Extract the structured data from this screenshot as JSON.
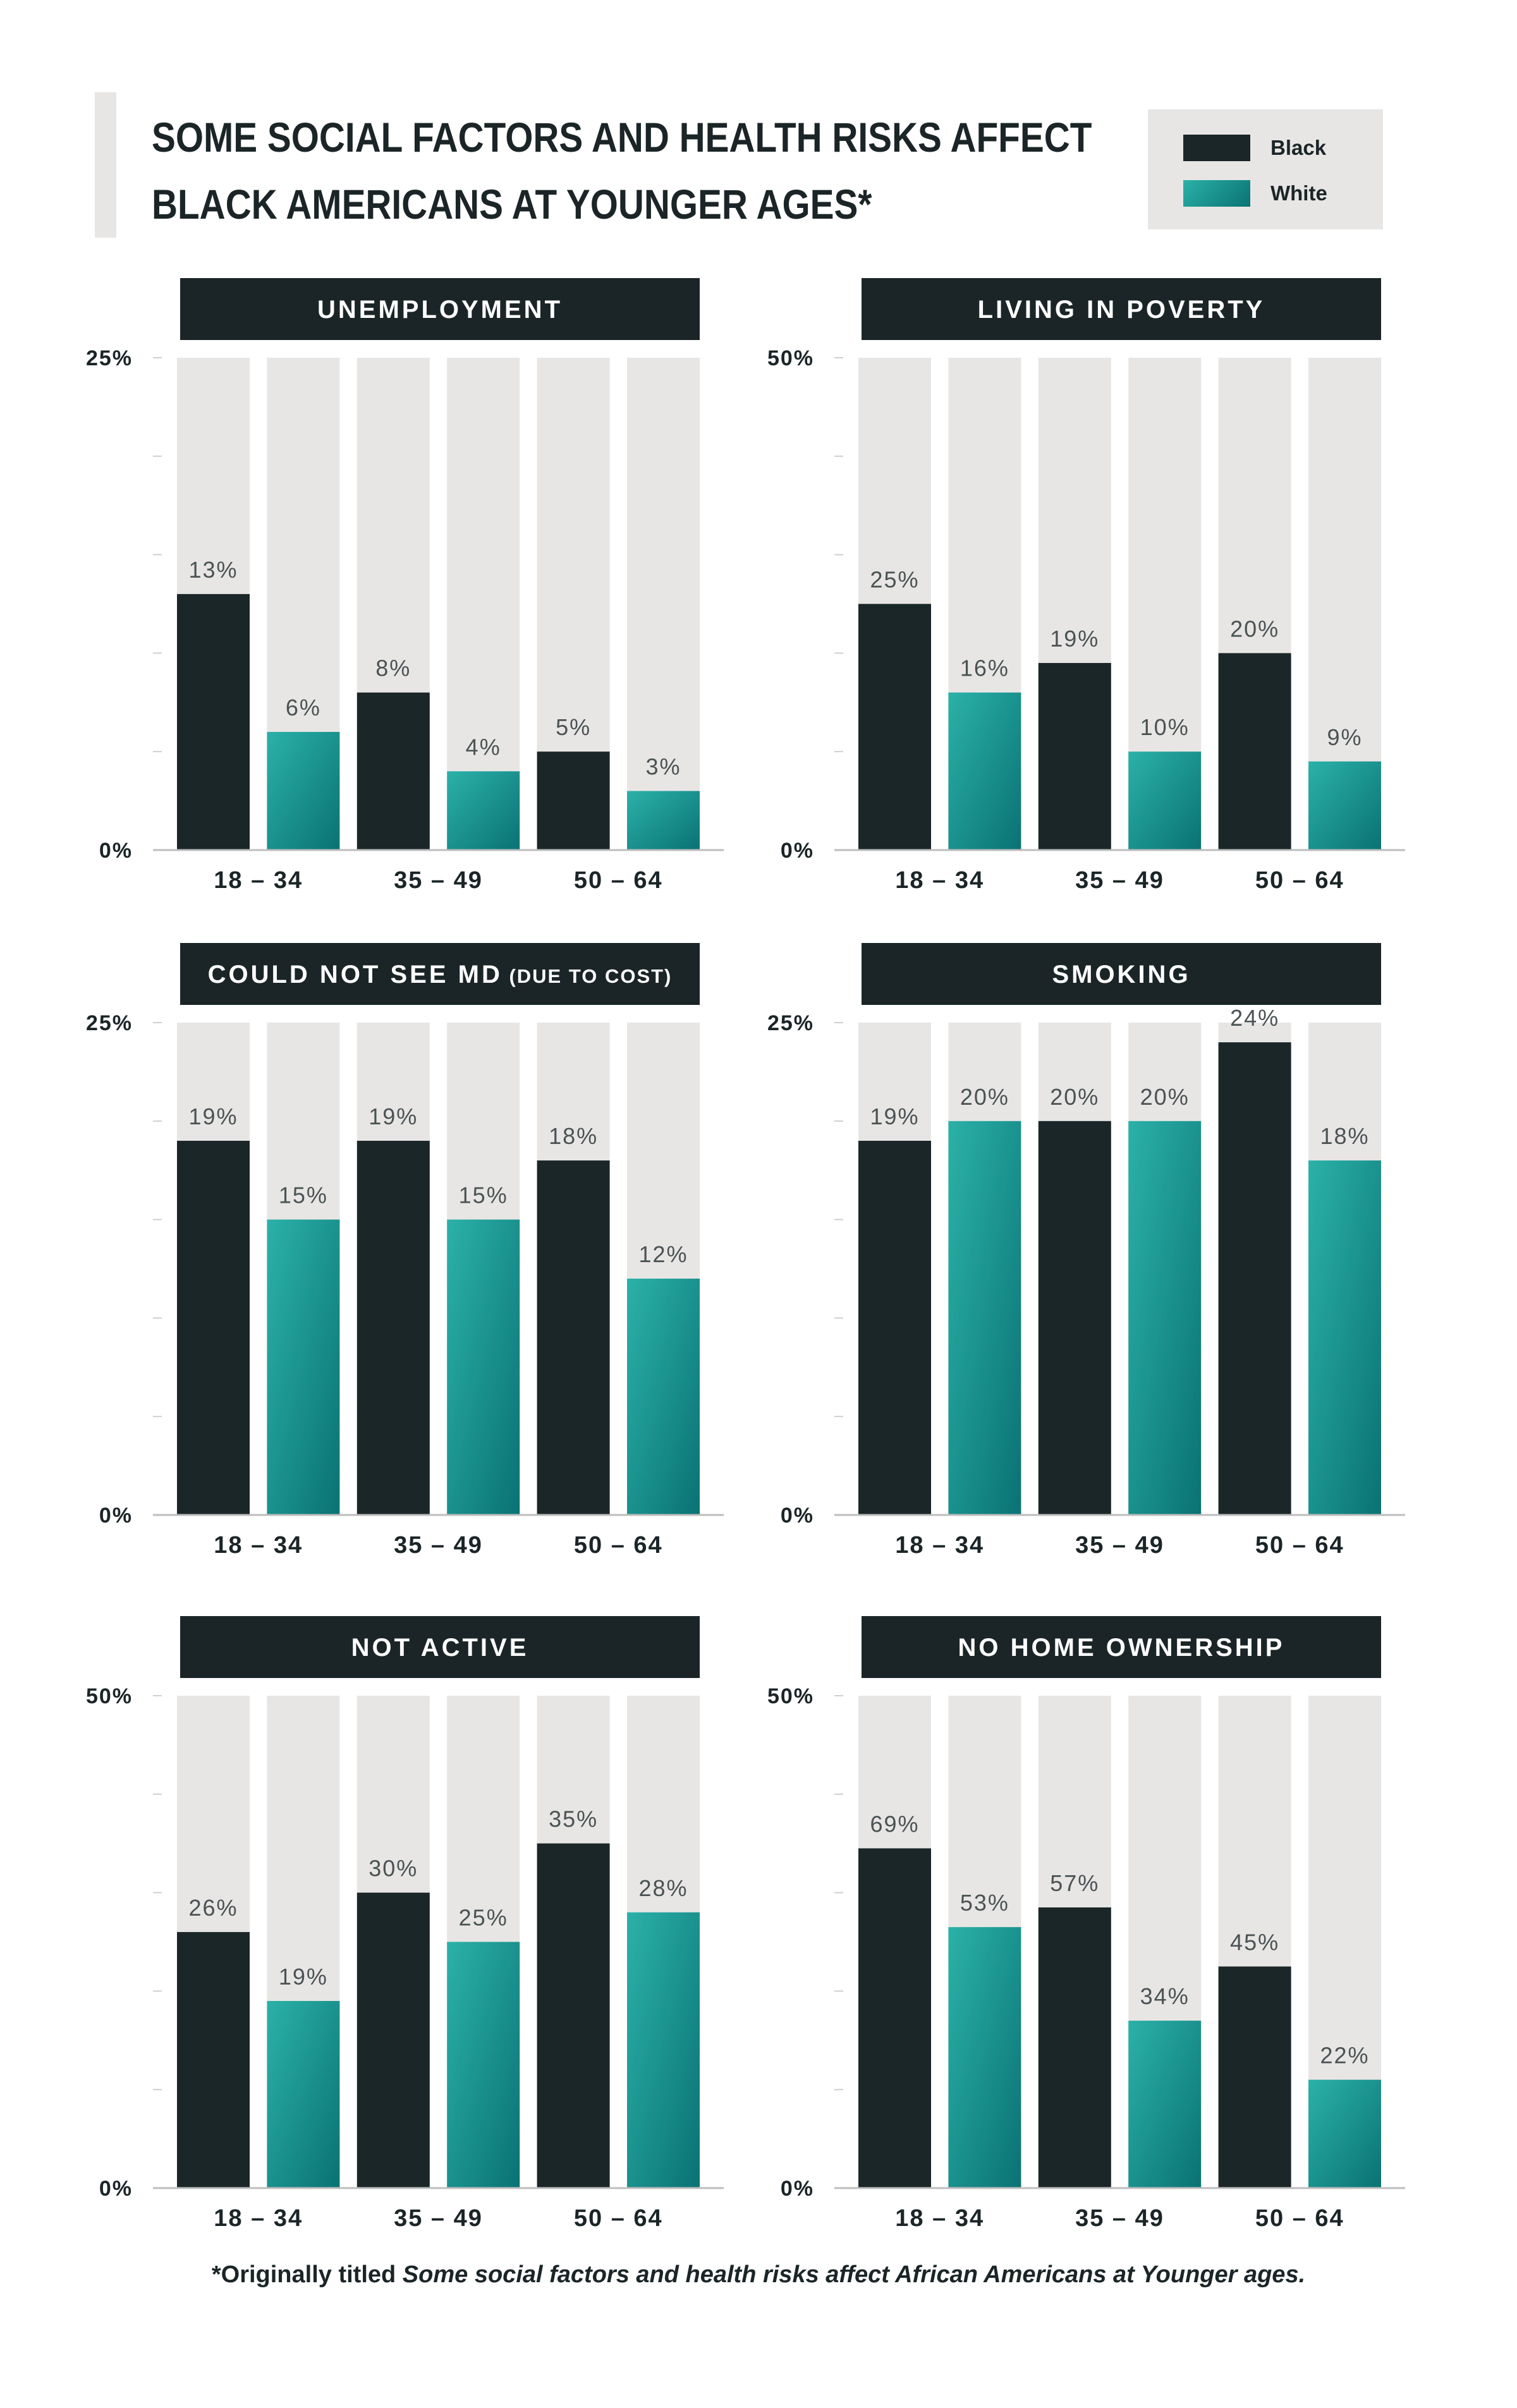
{
  "title": {
    "line1": "SOME SOCIAL FACTORS AND HEALTH RISKS AFFECT",
    "line2": "BLACK AMERICANS AT YOUNGER AGES*"
  },
  "legend": [
    {
      "label": "Black",
      "color": "#1a2628"
    },
    {
      "label": "White",
      "color": "#1a9c98"
    }
  ],
  "colors": {
    "black": "#1a2628",
    "white_top": "#2bb1a8",
    "white_bottom": "#0a7274",
    "background_bar": "#e8e6e4",
    "panel_header": "#1b2527"
  },
  "footnote": {
    "prefix": "*Originally titled ",
    "italic": "Some social factors and health risks affect African Americans at Younger ages."
  },
  "chart_data": [
    {
      "type": "bar",
      "title": "UNEMPLOYMENT",
      "categories": [
        "18 – 34",
        "35 – 49",
        "50 – 64"
      ],
      "ylim": [
        0,
        25
      ],
      "yticklabels": [
        "0%",
        "25%"
      ],
      "series": [
        {
          "name": "Black",
          "values": [
            13,
            8,
            5
          ],
          "labels": [
            "13%",
            "8%",
            "5%"
          ]
        },
        {
          "name": "White",
          "values": [
            6,
            4,
            3
          ],
          "labels": [
            "6%",
            "4%",
            "3%"
          ]
        }
      ]
    },
    {
      "type": "bar",
      "title": "LIVING IN POVERTY",
      "categories": [
        "18 – 34",
        "35 – 49",
        "50 – 64"
      ],
      "ylim": [
        0,
        50
      ],
      "yticklabels": [
        "0%",
        "50%"
      ],
      "series": [
        {
          "name": "Black",
          "values": [
            25,
            19,
            20
          ],
          "labels": [
            "25%",
            "19%",
            "20%"
          ]
        },
        {
          "name": "White",
          "values": [
            16,
            10,
            9
          ],
          "labels": [
            "16%",
            "10%",
            "9%"
          ]
        }
      ]
    },
    {
      "type": "bar",
      "title": "COULD NOT SEE MD",
      "title_small": "(DUE TO COST)",
      "categories": [
        "18 – 34",
        "35 – 49",
        "50 – 64"
      ],
      "ylim": [
        0,
        25
      ],
      "yticklabels": [
        "0%",
        "25%"
      ],
      "series": [
        {
          "name": "Black",
          "values": [
            19,
            19,
            18
          ],
          "labels": [
            "19%",
            "19%",
            "18%"
          ]
        },
        {
          "name": "White",
          "values": [
            15,
            15,
            12
          ],
          "labels": [
            "15%",
            "15%",
            "12%"
          ]
        }
      ]
    },
    {
      "type": "bar",
      "title": "SMOKING",
      "categories": [
        "18 – 34",
        "35 – 49",
        "50 – 64"
      ],
      "ylim": [
        0,
        25
      ],
      "yticklabels": [
        "0%",
        "25%"
      ],
      "series": [
        {
          "name": "Black",
          "values": [
            19,
            20,
            24
          ],
          "labels": [
            "19%",
            "20%",
            "24%"
          ]
        },
        {
          "name": "White",
          "values": [
            20,
            20,
            18
          ],
          "labels": [
            "20%",
            "20%",
            "18%"
          ]
        }
      ]
    },
    {
      "type": "bar",
      "title": "NOT ACTIVE",
      "categories": [
        "18 – 34",
        "35 – 49",
        "50 – 64"
      ],
      "ylim": [
        0,
        50
      ],
      "yticklabels": [
        "0%",
        "50%"
      ],
      "series": [
        {
          "name": "Black",
          "values": [
            26,
            30,
            35
          ],
          "labels": [
            "26%",
            "30%",
            "35%"
          ]
        },
        {
          "name": "White",
          "values": [
            19,
            25,
            28
          ],
          "labels": [
            "19%",
            "25%",
            "28%"
          ]
        }
      ]
    },
    {
      "type": "bar",
      "title": "NO HOME OWNERSHIP",
      "categories": [
        "18 – 34",
        "35 – 49",
        "50 – 64"
      ],
      "ylim": [
        0,
        100
      ],
      "yticklabels": [
        "0%",
        "50%"
      ],
      "series": [
        {
          "name": "Black",
          "values": [
            69,
            57,
            45
          ],
          "labels": [
            "69%",
            "57%",
            "45%"
          ]
        },
        {
          "name": "White",
          "values": [
            53,
            34,
            22
          ],
          "labels": [
            "53%",
            "34%",
            "22%"
          ]
        }
      ]
    }
  ]
}
